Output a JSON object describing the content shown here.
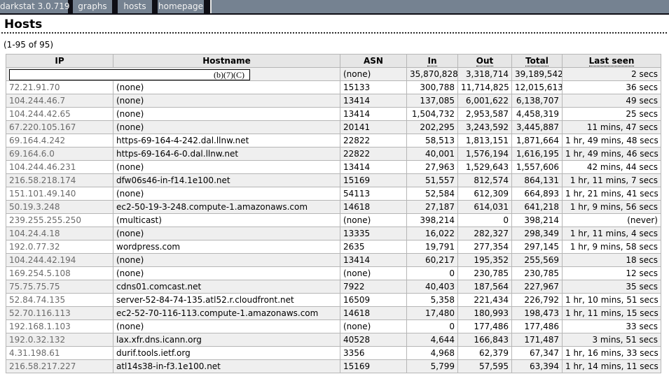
{
  "nav": {
    "brand": "darkstat 3.0.719",
    "items": [
      {
        "label": "graphs"
      },
      {
        "label": "hosts"
      },
      {
        "label": "homepage"
      }
    ]
  },
  "page": {
    "title": "Hosts",
    "range_label": "(1-95 of 95)"
  },
  "colors": {
    "nav_background": "#0e0e15",
    "nav_segment": "#758291",
    "header_background": "#e6e6e6",
    "row_stripe": "#efefef",
    "table_border": "#b6b6b6",
    "ip_text": "#6b6b6b"
  },
  "table": {
    "columns": [
      {
        "label": "IP",
        "sortable": false
      },
      {
        "label": "Hostname",
        "sortable": false
      },
      {
        "label": "ASN",
        "sortable": false
      },
      {
        "label": "In",
        "sortable": true
      },
      {
        "label": "Out",
        "sortable": true
      },
      {
        "label": "Total",
        "sortable": true
      },
      {
        "label": "Last seen",
        "sortable": true
      }
    ],
    "redaction_label": "(b)(7)(C)",
    "rows": [
      {
        "redacted": true,
        "ip": "",
        "hostname": "",
        "asn": "(none)",
        "in": "35,870,828",
        "out": "3,318,714",
        "total": "39,189,542",
        "last_seen": "2 secs"
      },
      {
        "redacted": false,
        "ip": "72.21.91.70",
        "hostname": "(none)",
        "asn": "15133",
        "in": "300,788",
        "out": "11,714,825",
        "total": "12,015,613",
        "last_seen": "36 secs"
      },
      {
        "redacted": false,
        "ip": "104.244.46.7",
        "hostname": "(none)",
        "asn": "13414",
        "in": "137,085",
        "out": "6,001,622",
        "total": "6,138,707",
        "last_seen": "49 secs"
      },
      {
        "redacted": false,
        "ip": "104.244.42.65",
        "hostname": "(none)",
        "asn": "13414",
        "in": "1,504,732",
        "out": "2,953,587",
        "total": "4,458,319",
        "last_seen": "25 secs"
      },
      {
        "redacted": false,
        "ip": "67.220.105.167",
        "hostname": "(none)",
        "asn": "20141",
        "in": "202,295",
        "out": "3,243,592",
        "total": "3,445,887",
        "last_seen": "11 mins, 47 secs"
      },
      {
        "redacted": false,
        "ip": "69.164.4.242",
        "hostname": "https-69-164-4-242.dal.llnw.net",
        "asn": "22822",
        "in": "58,513",
        "out": "1,813,151",
        "total": "1,871,664",
        "last_seen": "1 hr, 49 mins, 48 secs"
      },
      {
        "redacted": false,
        "ip": "69.164.6.0",
        "hostname": "https-69-164-6-0.dal.llnw.net",
        "asn": "22822",
        "in": "40,001",
        "out": "1,576,194",
        "total": "1,616,195",
        "last_seen": "1 hr, 49 mins, 46 secs"
      },
      {
        "redacted": false,
        "ip": "104.244.46.231",
        "hostname": "(none)",
        "asn": "13414",
        "in": "27,963",
        "out": "1,529,643",
        "total": "1,557,606",
        "last_seen": "42 mins, 44 secs"
      },
      {
        "redacted": false,
        "ip": "216.58.218.174",
        "hostname": "dfw06s46-in-f14.1e100.net",
        "asn": "15169",
        "in": "51,557",
        "out": "812,574",
        "total": "864,131",
        "last_seen": "1 hr, 11 mins, 7 secs"
      },
      {
        "redacted": false,
        "ip": "151.101.49.140",
        "hostname": "(none)",
        "asn": "54113",
        "in": "52,584",
        "out": "612,309",
        "total": "664,893",
        "last_seen": "1 hr, 21 mins, 41 secs"
      },
      {
        "redacted": false,
        "ip": "50.19.3.248",
        "hostname": "ec2-50-19-3-248.compute-1.amazonaws.com",
        "asn": "14618",
        "in": "27,187",
        "out": "614,031",
        "total": "641,218",
        "last_seen": "1 hr, 9 mins, 56 secs"
      },
      {
        "redacted": false,
        "ip": "239.255.255.250",
        "hostname": "(multicast)",
        "asn": "(none)",
        "in": "398,214",
        "out": "0",
        "total": "398,214",
        "last_seen": "(never)"
      },
      {
        "redacted": false,
        "ip": "104.24.4.18",
        "hostname": "(none)",
        "asn": "13335",
        "in": "16,022",
        "out": "282,327",
        "total": "298,349",
        "last_seen": "1 hr, 11 mins, 4 secs"
      },
      {
        "redacted": false,
        "ip": "192.0.77.32",
        "hostname": "wordpress.com",
        "asn": "2635",
        "in": "19,791",
        "out": "277,354",
        "total": "297,145",
        "last_seen": "1 hr, 9 mins, 58 secs"
      },
      {
        "redacted": false,
        "ip": "104.244.42.194",
        "hostname": "(none)",
        "asn": "13414",
        "in": "60,217",
        "out": "195,352",
        "total": "255,569",
        "last_seen": "18 secs"
      },
      {
        "redacted": false,
        "ip": "169.254.5.108",
        "hostname": "(none)",
        "asn": "(none)",
        "in": "0",
        "out": "230,785",
        "total": "230,785",
        "last_seen": "12 secs"
      },
      {
        "redacted": false,
        "ip": "75.75.75.75",
        "hostname": "cdns01.comcast.net",
        "asn": "7922",
        "in": "40,403",
        "out": "187,564",
        "total": "227,967",
        "last_seen": "35 secs"
      },
      {
        "redacted": false,
        "ip": "52.84.74.135",
        "hostname": "server-52-84-74-135.atl52.r.cloudfront.net",
        "asn": "16509",
        "in": "5,358",
        "out": "221,434",
        "total": "226,792",
        "last_seen": "1 hr, 10 mins, 51 secs"
      },
      {
        "redacted": false,
        "ip": "52.70.116.113",
        "hostname": "ec2-52-70-116-113.compute-1.amazonaws.com",
        "asn": "14618",
        "in": "17,480",
        "out": "180,993",
        "total": "198,473",
        "last_seen": "1 hr, 11 mins, 15 secs"
      },
      {
        "redacted": false,
        "ip": "192.168.1.103",
        "hostname": "(none)",
        "asn": "(none)",
        "in": "0",
        "out": "177,486",
        "total": "177,486",
        "last_seen": "33 secs"
      },
      {
        "redacted": false,
        "ip": "192.0.32.132",
        "hostname": "lax.xfr.dns.icann.org",
        "asn": "40528",
        "in": "4,644",
        "out": "166,843",
        "total": "171,487",
        "last_seen": "3 mins, 51 secs"
      },
      {
        "redacted": false,
        "ip": "4.31.198.61",
        "hostname": "durif.tools.ietf.org",
        "asn": "3356",
        "in": "4,968",
        "out": "62,379",
        "total": "67,347",
        "last_seen": "1 hr, 16 mins, 33 secs"
      },
      {
        "redacted": false,
        "ip": "216.58.217.227",
        "hostname": "atl14s38-in-f3.1e100.net",
        "asn": "15169",
        "in": "5,799",
        "out": "57,595",
        "total": "63,394",
        "last_seen": "1 hr, 14 mins, 11 secs"
      }
    ]
  }
}
